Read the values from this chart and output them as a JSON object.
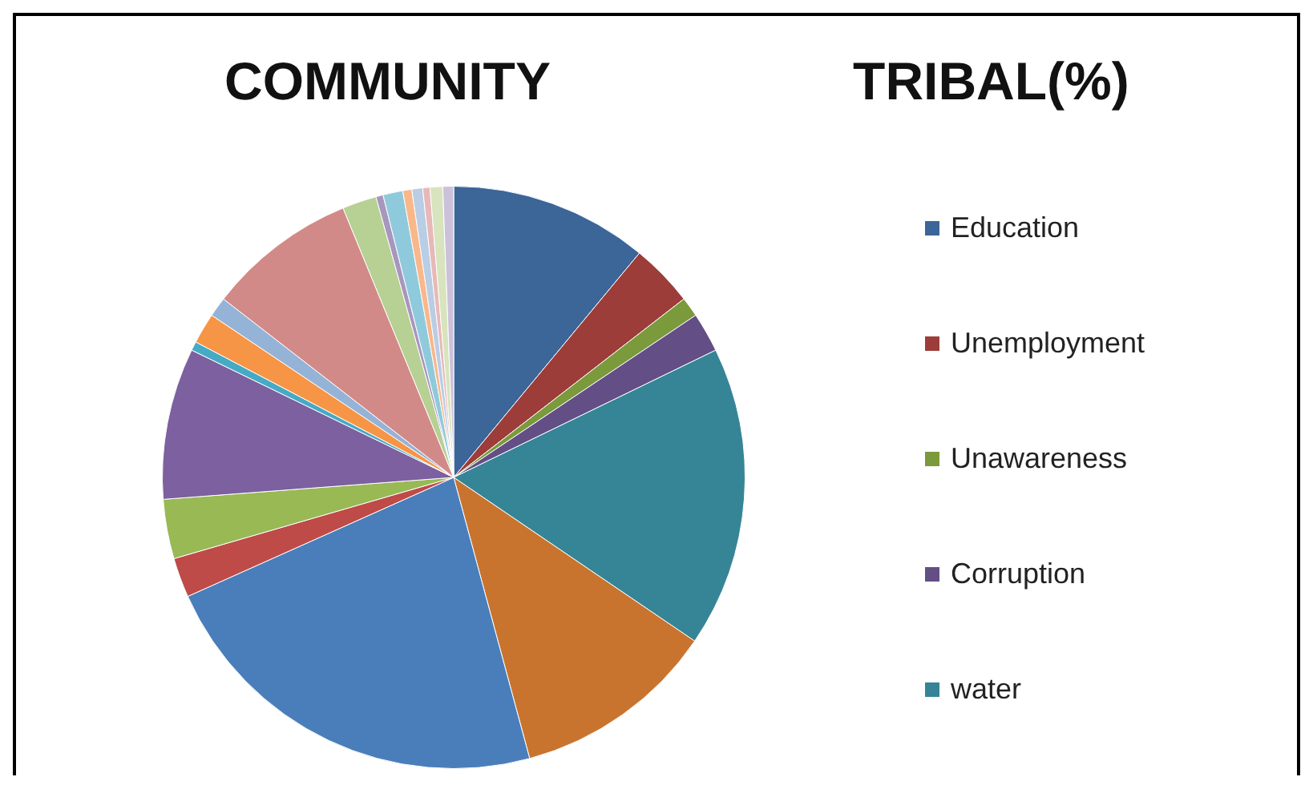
{
  "chart_data": {
    "type": "pie",
    "title": "COMMUNITY TRIBAL(%)",
    "categories": [
      "Education",
      "Unemployment",
      "Unawareness",
      "Corruption",
      "water",
      null,
      null,
      null,
      null,
      null,
      null,
      null,
      null,
      null,
      null,
      null,
      null,
      null,
      null,
      null,
      null,
      null
    ],
    "values": [
      11.0,
      3.5,
      1.1,
      2.2,
      16.7,
      11.3,
      22.5,
      2.2,
      3.3,
      8.4,
      0.5,
      1.7,
      1.1,
      8.3,
      1.9,
      0.4,
      1.1,
      0.5,
      0.6,
      0.4,
      0.7,
      0.6
    ],
    "colors": [
      "#3c6598",
      "#9c3d3a",
      "#7a9a3c",
      "#644e86",
      "#358597",
      "#c8742f",
      "#4a7ebb",
      "#be4b48",
      "#98b954",
      "#7d60a0",
      "#46aac5",
      "#f69546",
      "#95b3d7",
      "#d28a88",
      "#b7d093",
      "#a796be",
      "#8fcadc",
      "#f9b78a",
      "#b9cde5",
      "#e6b9b8",
      "#d7e4bd",
      "#ccc1da"
    ],
    "legend": "right"
  }
}
